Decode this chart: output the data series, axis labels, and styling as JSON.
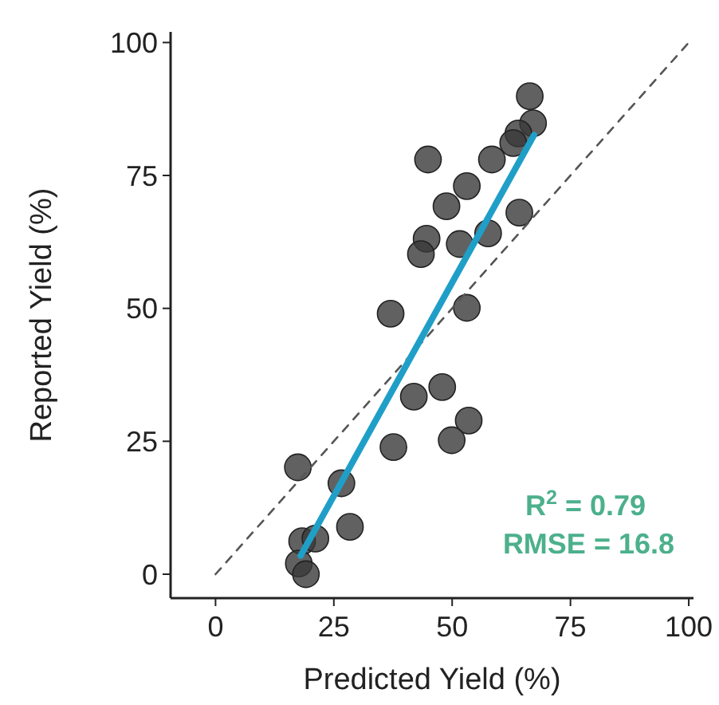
{
  "chart_data": {
    "type": "scatter",
    "xlabel": "Predicted Yield (%)",
    "ylabel": "Reported Yield (%)",
    "xlim": [
      -9.5,
      101
    ],
    "ylim": [
      -4.5,
      102
    ],
    "xticks": [
      0,
      25,
      50,
      75,
      100
    ],
    "yticks": [
      0,
      25,
      50,
      75,
      100
    ],
    "marker": "circle",
    "annotations": [
      "R$^{2}$ = 0.79",
      "RMSE = 16.8"
    ],
    "series": [
      {
        "color": "#3a3a3a",
        "x": [
          66.4,
          67.1,
          64.0,
          62.9,
          44.9,
          58.4,
          53.1,
          48.8,
          64.2,
          44.6,
          43.4,
          51.6,
          57.6,
          37.0,
          53.1,
          41.9,
          47.9,
          53.5,
          49.9,
          37.6,
          17.4,
          26.6,
          28.4,
          18.3,
          21.1,
          17.6,
          19.1
        ],
        "values": [
          89.9,
          84.8,
          82.9,
          81.1,
          78.0,
          78.0,
          73.0,
          69.2,
          68.0,
          63.1,
          60.2,
          62.1,
          64.1,
          49.0,
          50.1,
          33.4,
          35.2,
          28.9,
          25.2,
          23.9,
          20.1,
          17.1,
          8.9,
          6.2,
          6.7,
          2.0,
          0
        ]
      },
      {
        "type": "line",
        "color": "#555555",
        "line_style": "dashed",
        "marker": "none",
        "x": [
          0,
          100
        ],
        "values": [
          0,
          100
        ]
      },
      {
        "type": "line",
        "color": "#1f9fc8",
        "line_style": "solid",
        "marker": "none",
        "x": [
          18,
          67.3
        ],
        "values": [
          3.5,
          82.6
        ]
      }
    ]
  }
}
